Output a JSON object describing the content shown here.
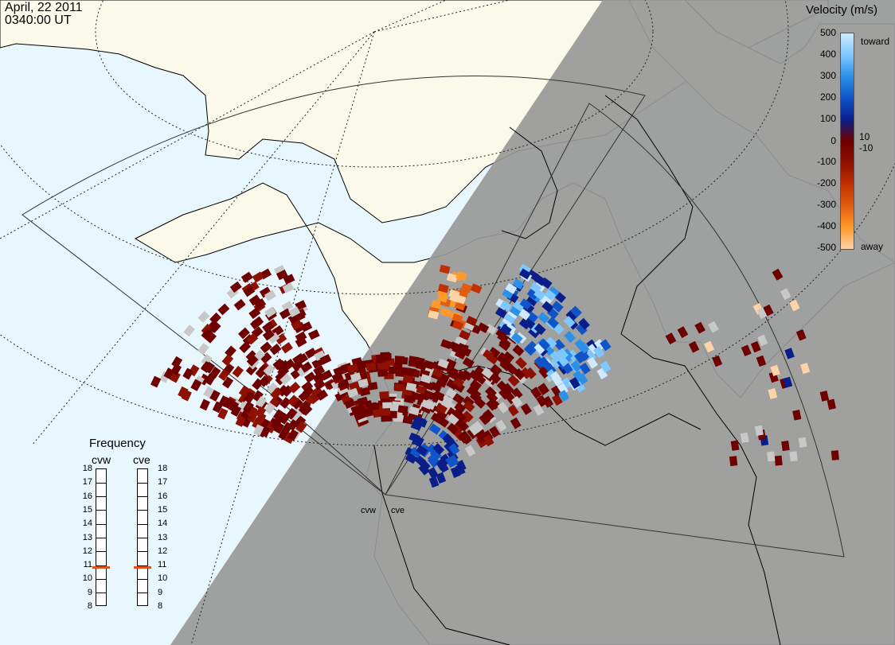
{
  "header": {
    "date": "April, 22 2011",
    "time": "0340:00 UT"
  },
  "colorbar": {
    "title": "Velocity (m/s)",
    "ticks": [
      "500",
      "400",
      "300",
      "200",
      "100",
      "10",
      "0",
      "-10",
      "-100",
      "-200",
      "-300",
      "-400",
      "-500"
    ],
    "toward_label": "toward",
    "away_label": "away",
    "colors": [
      "#cfe9ff",
      "#7ec8ff",
      "#2c8fe8",
      "#0f54c8",
      "#0a1e8a",
      "#6e0000",
      "#8e1000",
      "#c03000",
      "#e25d10",
      "#ff9a2a",
      "#ffd3a8"
    ]
  },
  "frequency": {
    "title": "Frequency",
    "radars": [
      {
        "name": "cvw",
        "value_mhz": 10.8
      },
      {
        "name": "cve",
        "value_mhz": 10.8
      }
    ],
    "scale": [
      "18",
      "17",
      "16",
      "15",
      "14",
      "13",
      "12",
      "11",
      "10",
      "9",
      "8"
    ],
    "marker_color": "#e0521c"
  },
  "sites": [
    "cvw",
    "cve"
  ],
  "map_colors": {
    "ocean": "#e8f6fd",
    "land": "#fbf9ea",
    "night": "#989898",
    "coast": "#000000",
    "ground_scatter": "#c8c8c8",
    "fov_outline": "#333333"
  }
}
